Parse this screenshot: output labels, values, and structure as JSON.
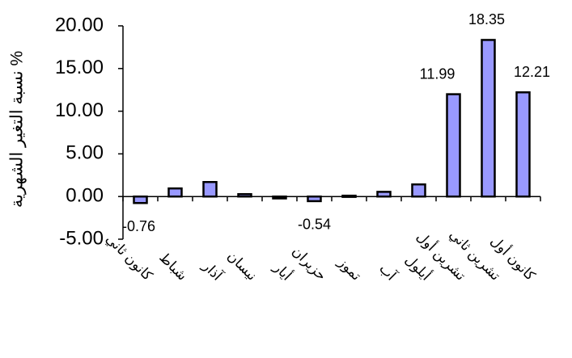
{
  "chart_data": {
    "type": "bar",
    "ylabel": "نسبة التغير الشهرية %",
    "ylim": [
      -5,
      20
    ],
    "yticks": [
      "-5.00",
      "0.00",
      "5.00",
      "10.00",
      "15.00",
      "20.00"
    ],
    "categories": [
      "كانون ثاني",
      "شباط",
      "آذار",
      "نيسان",
      "أيار",
      "حزيران",
      "تموز",
      "آب",
      "أيلول",
      "تشرين أول",
      "تشرين ثاني",
      "كانون أول"
    ],
    "values": [
      -0.76,
      0.95,
      1.7,
      0.28,
      -0.22,
      -0.54,
      0.1,
      0.55,
      1.42,
      11.99,
      18.35,
      12.21
    ],
    "data_labels": [
      "-0.76",
      "",
      "",
      "",
      "",
      "-0.54",
      "",
      "",
      "",
      "11.99",
      "18.35",
      "12.21"
    ],
    "bar_color": "#9999ff",
    "bar_outline": "#000000",
    "grid": false,
    "legend": "none"
  }
}
